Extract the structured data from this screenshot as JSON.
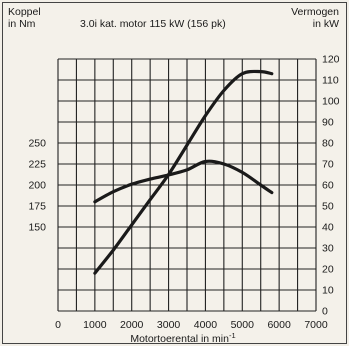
{
  "chart_data": {
    "type": "line",
    "title": "3.0i kat. motor 115 kW (156 pk)",
    "left_axis_title": [
      "Koppel",
      "in Nm"
    ],
    "right_axis_title": [
      "Vermogen",
      "in kW"
    ],
    "xlabel": "Motortoerental in min",
    "xlabel_superscript": "-1",
    "xlim": [
      0,
      7000
    ],
    "x_ticks": [
      "0",
      "1000",
      "2000",
      "3000",
      "4000",
      "5000",
      "6000",
      "7000"
    ],
    "left_ylim": [
      150,
      250
    ],
    "left_ticks": [
      "150",
      "175",
      "200",
      "225",
      "250"
    ],
    "right_ylim": [
      0,
      120
    ],
    "right_ticks": [
      "0",
      "10",
      "20",
      "30",
      "40",
      "50",
      "60",
      "70",
      "80",
      "90",
      "100",
      "110",
      "120"
    ],
    "grid": true,
    "series": [
      {
        "axis": "left",
        "x": [
          1000,
          1500,
          2000,
          2500,
          3000,
          3500,
          4000,
          4500,
          5000,
          5500,
          5800
        ],
        "y": [
          180,
          192,
          201,
          207,
          212,
          218,
          228,
          225,
          215,
          200,
          191
        ]
      },
      {
        "axis": "right",
        "x": [
          1000,
          1500,
          2000,
          2500,
          3000,
          3500,
          4000,
          4500,
          5000,
          5500,
          5800
        ],
        "y": [
          18,
          29,
          41,
          53,
          65,
          79,
          93,
          105,
          113,
          114,
          113
        ]
      }
    ]
  }
}
